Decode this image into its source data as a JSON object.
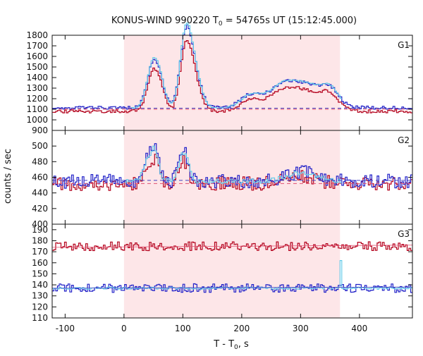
{
  "chart_data": {
    "type": "line",
    "title": "KONUS-WIND 990220 T",
    "title_sub": "0",
    "title_rest": " = 54765s UT (15:12:45.000)",
    "xlabel_main": "T - T",
    "xlabel_sub": "0",
    "xlabel_rest": ", s",
    "ylabel": "counts / sec",
    "xlim": [
      -122,
      490
    ],
    "x_ticks": [
      -100,
      0,
      100,
      200,
      300,
      400
    ],
    "highlight_interval": [
      0,
      367
    ],
    "highlight_color": "#fde6e8",
    "colors": {
      "red": "#b3001b",
      "blue": "#2020c8",
      "cyan": "#5bc8e8",
      "bg_red": "#e05070",
      "bg_blue": "#4040c0"
    },
    "panels": [
      {
        "label": "G1",
        "ylim": [
          900,
          1800
        ],
        "y_ticks": [
          900,
          1000,
          1100,
          1200,
          1300,
          1400,
          1500,
          1600,
          1700,
          1800
        ],
        "background_levels": [
          1100,
          1110
        ],
        "features": [
          {
            "center": 48,
            "width": 10,
            "amp": 420
          },
          {
            "center": 62,
            "width": 8,
            "amp": 150
          },
          {
            "center": 102,
            "width": 9,
            "amp": 500
          },
          {
            "center": 115,
            "width": 12,
            "amp": 420
          },
          {
            "center": 215,
            "width": 18,
            "amp": 120
          },
          {
            "center": 265,
            "width": 22,
            "amp": 160
          },
          {
            "center": 310,
            "width": 30,
            "amp": 210
          },
          {
            "center": 350,
            "width": 14,
            "amp": 120
          }
        ],
        "series": [
          {
            "key": "red",
            "base": 1080,
            "noise": 15,
            "scale": 0.88,
            "seed": 11
          },
          {
            "key": "blue",
            "base": 1115,
            "noise": 15,
            "scale": 1.0,
            "seed": 23
          },
          {
            "key": "cyan",
            "base": 1110,
            "noise": 6,
            "scale": 1.05,
            "seed": 37,
            "range": [
              10,
              367
            ]
          }
        ]
      },
      {
        "label": "G2",
        "ylim": [
          400,
          520
        ],
        "y_ticks": [
          400,
          420,
          440,
          460,
          480,
          500
        ],
        "background_levels": [
          452,
          456
        ],
        "features": [
          {
            "center": 40,
            "width": 8,
            "amp": 30
          },
          {
            "center": 52,
            "width": 6,
            "amp": 35
          },
          {
            "center": 100,
            "width": 8,
            "amp": 40
          },
          {
            "center": 300,
            "width": 25,
            "amp": 12
          }
        ],
        "series": [
          {
            "key": "red",
            "base": 452,
            "noise": 9,
            "scale": 0.7,
            "seed": 5
          },
          {
            "key": "blue",
            "base": 455,
            "noise": 9,
            "scale": 1.0,
            "seed": 17
          },
          {
            "key": "cyan",
            "base": 455,
            "noise": 3,
            "scale": 0.9,
            "seed": 29,
            "range": [
              0,
              367
            ]
          }
        ]
      },
      {
        "label": "G3",
        "ylim": [
          110,
          195
        ],
        "y_ticks": [
          110,
          120,
          130,
          140,
          150,
          160,
          170,
          180,
          190
        ],
        "background_levels": [],
        "features": [],
        "series": [
          {
            "key": "red",
            "base": 175,
            "noise": 4,
            "scale": 0,
            "seed": 3,
            "trend": "red"
          },
          {
            "key": "blue",
            "base": 137,
            "noise": 4,
            "scale": 0,
            "seed": 41
          },
          {
            "key": "cyan",
            "base": 137,
            "noise": 1,
            "scale": 0,
            "seed": 53,
            "spike": [
              367,
              162
            ]
          }
        ]
      }
    ]
  }
}
